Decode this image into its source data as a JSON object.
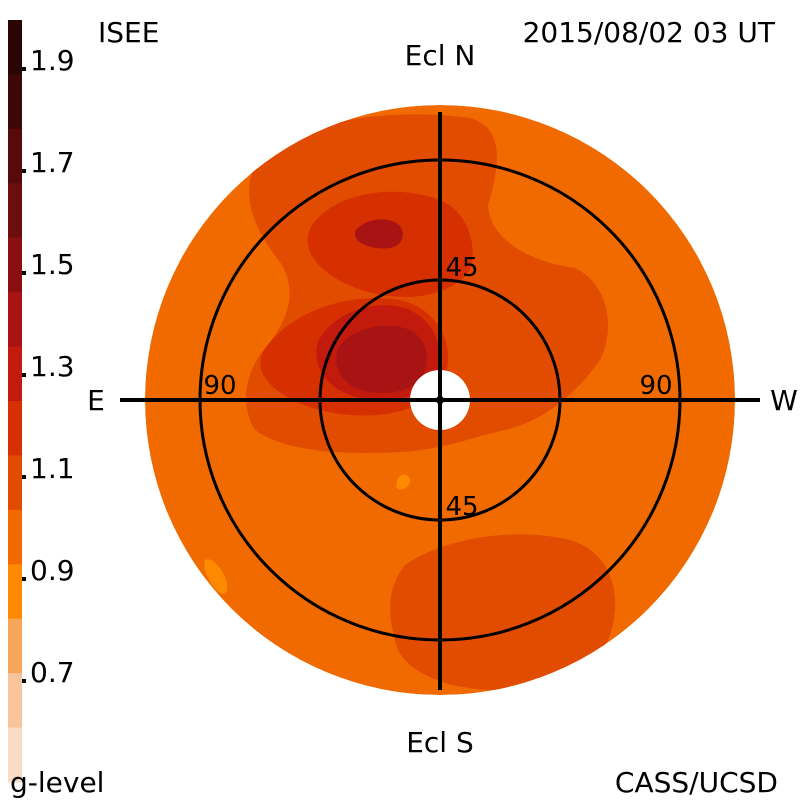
{
  "header": {
    "org_label": "ISEE",
    "timestamp": "2015/08/02 03 UT"
  },
  "footer": {
    "colorbar_title": "g-level",
    "credit": "CASS/UCSD"
  },
  "directions": {
    "north": "Ecl N",
    "south": "Ecl S",
    "east": "E",
    "west": "W"
  },
  "rings": {
    "inner_north_label": "45",
    "inner_south_label": "45",
    "outer_east_label": "90",
    "outer_west_label": "90"
  },
  "colorbar": {
    "tick_labels": [
      "1.9",
      "1.7",
      "1.5",
      "1.3",
      "1.1",
      "0.9",
      "0.7"
    ],
    "colors": [
      "#2a0505",
      "#3e0707",
      "#560a0a",
      "#6e0d0d",
      "#8a1010",
      "#a81414",
      "#c21a0d",
      "#d62f00",
      "#e14c00",
      "#f06a00",
      "#ff8a00",
      "#f8a55c",
      "#f8c49c",
      "#fadcc4"
    ]
  },
  "map_colors": {
    "base": "#f06a00",
    "level_1": "#e14c00",
    "level_2": "#d62f00",
    "level_3": "#c21a0d",
    "level_4": "#a81414",
    "pale": "#ff8a00",
    "hole": "#ffffff"
  }
}
